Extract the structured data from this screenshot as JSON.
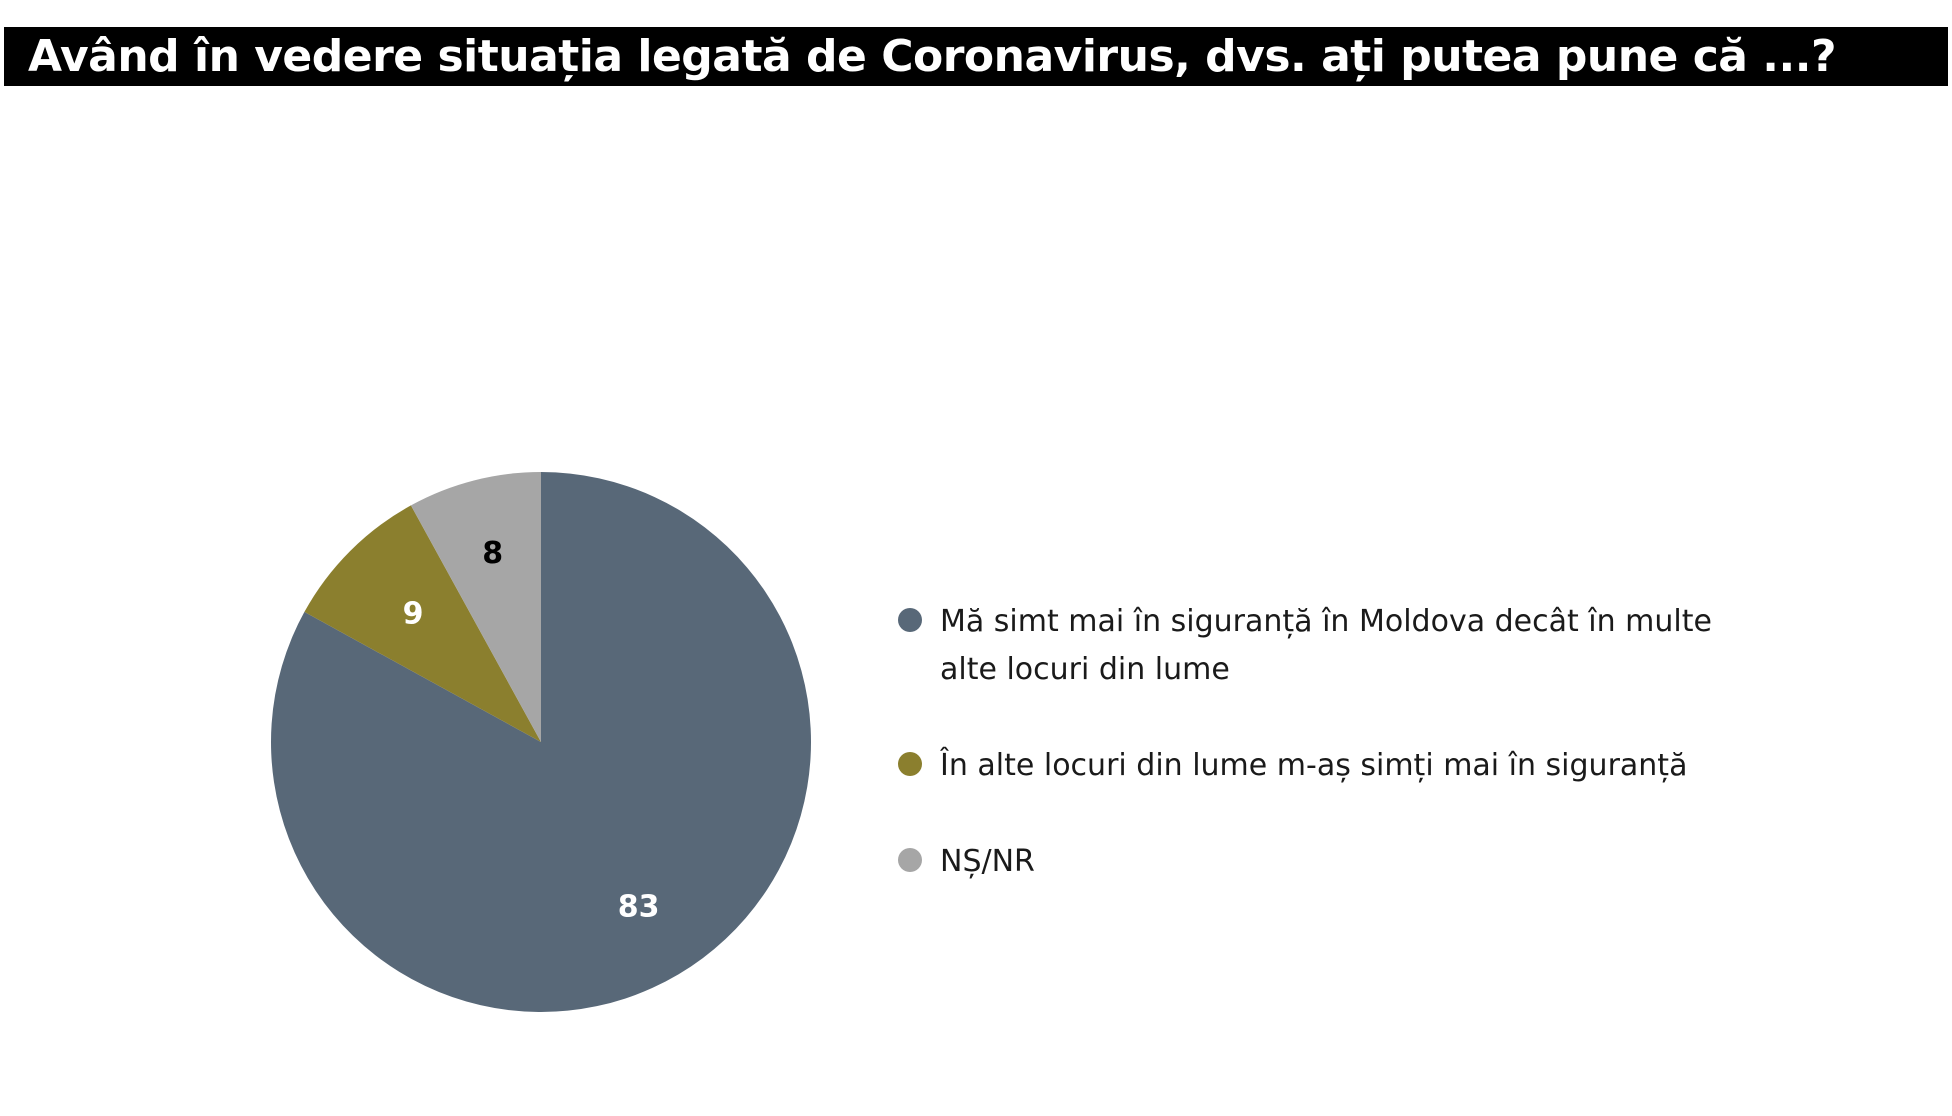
{
  "title": "Având în vedere situația legată de  Coronavirus, dvs. ați putea pune că ...?",
  "chart_data": {
    "type": "pie",
    "title": "Având în vedere situația legată de  Coronavirus, dvs. ați putea pune că ...?",
    "start_angle_deg": 0,
    "direction": "clockwise",
    "legend_position": "right",
    "slices": [
      {
        "label": "Mă simt mai în siguranță în Moldova decât în multe alte locuri din lume",
        "value": 83,
        "color": "#586878",
        "label_color": "#ffffff"
      },
      {
        "label": "În alte locuri din lume m-aș simți mai în siguranță",
        "value": 9,
        "color": "#8b7f2e",
        "label_color": "#ffffff"
      },
      {
        "label": "NȘ/NR",
        "value": 8,
        "color": "#a6a6a6",
        "label_color": "#000000"
      }
    ]
  },
  "legend": {
    "items": [
      {
        "label": "Mă simt mai în siguranță în Moldova decât în multe alte locuri din lume",
        "color": "#586878"
      },
      {
        "label": "În alte locuri din lume m-aș simți mai în siguranță",
        "color": "#8b7f2e"
      },
      {
        "label": "NȘ/NR",
        "color": "#a6a6a6"
      }
    ]
  }
}
